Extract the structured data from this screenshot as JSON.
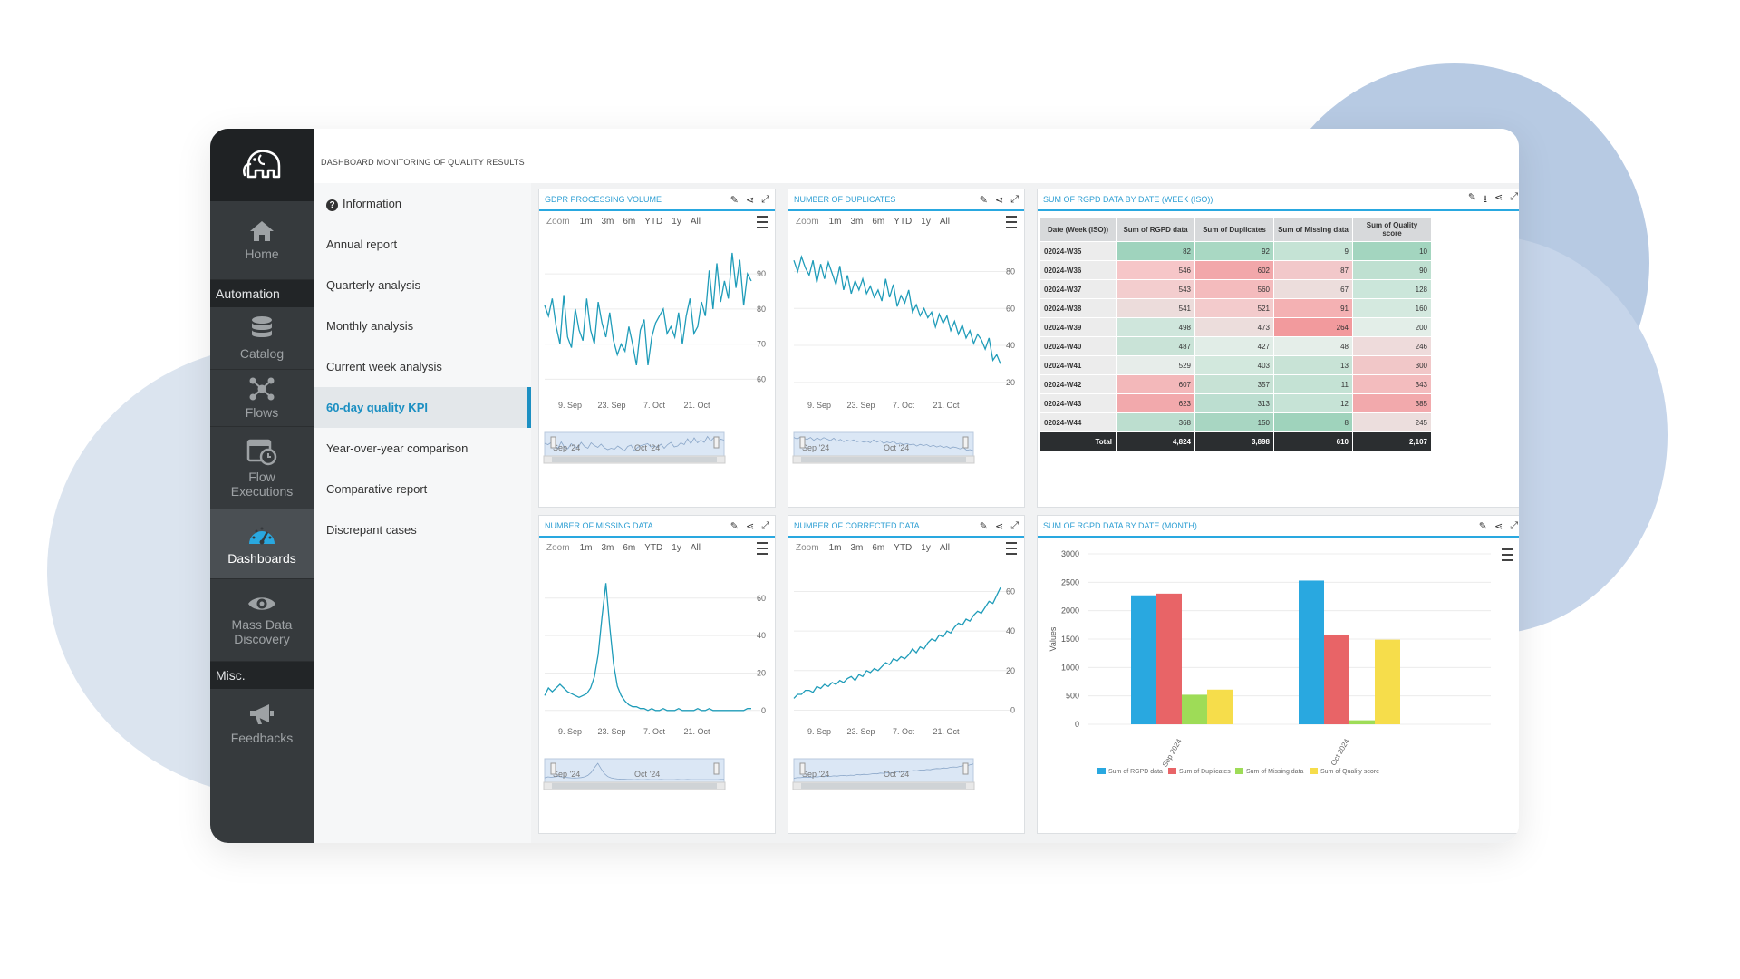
{
  "nav": {
    "home": "Home",
    "section_automation": "Automation",
    "catalog": "Catalog",
    "flows": "Flows",
    "flow_executions_1": "Flow",
    "flow_executions_2": "Executions",
    "dashboards": "Dashboards",
    "mass_1": "Mass Data",
    "mass_2": "Discovery",
    "section_misc": "Misc.",
    "feedbacks": "Feedbacks"
  },
  "page_title": "DASHBOARD MONITORING OF QUALITY RESULTS",
  "menu": [
    "Information",
    "Annual report",
    "Quarterly analysis",
    "Monthly analysis",
    "Current week analysis",
    "60-day quality KPI",
    "Year-over-year comparison",
    "Comparative report",
    "Discrepant cases"
  ],
  "zoom": {
    "label": "Zoom",
    "buttons": [
      "1m",
      "3m",
      "6m",
      "YTD",
      "1y",
      "All"
    ]
  },
  "date_ticks": [
    "9. Sep",
    "23. Sep",
    "7. Oct",
    "21. Oct"
  ],
  "navigator_labels": [
    "Sep '24",
    "Oct '24"
  ],
  "panels": {
    "gdpr": {
      "title": "GDPR PROCESSING VOLUME",
      "y_ticks": [
        "90",
        "80",
        "70",
        "60"
      ]
    },
    "duplicates": {
      "title": "NUMBER OF DUPLICATES",
      "y_ticks": [
        "80",
        "60",
        "40",
        "20"
      ]
    },
    "missing": {
      "title": "NUMBER OF MISSING DATA",
      "y_ticks": [
        "60",
        "40",
        "20",
        "0"
      ]
    },
    "corrected": {
      "title": "NUMBER OF CORRECTED DATA",
      "y_ticks": [
        "60",
        "40",
        "20",
        "0"
      ]
    },
    "pivot": {
      "title": "SUM OF RGPD DATA BY DATE (WEEK (ISO))"
    },
    "month": {
      "title": "SUM OF RGPD DATA BY DATE (MONTH)"
    }
  },
  "pivot": {
    "headers": [
      "Date (Week (ISO))",
      "Sum of RGPD data",
      "Sum of Duplicates",
      "Sum of Missing data",
      "Sum of Quality score"
    ],
    "rows": [
      {
        "label": "02024-W35",
        "values": [
          "82",
          "92",
          "9",
          "10"
        ],
        "colors": [
          "#9fd3bd",
          "#a9d8c3",
          "#c5e3d5",
          "#a3d5bf"
        ]
      },
      {
        "label": "02024-W36",
        "values": [
          "546",
          "602",
          "87",
          "90"
        ],
        "colors": [
          "#f6c6c8",
          "#f2a7aa",
          "#f2c8ca",
          "#bfe0d1"
        ]
      },
      {
        "label": "02024-W37",
        "values": [
          "543",
          "560",
          "67",
          "128"
        ],
        "colors": [
          "#f3cdce",
          "#f4bbbd",
          "#ecdddc",
          "#cbe6da"
        ]
      },
      {
        "label": "02024-W38",
        "values": [
          "541",
          "521",
          "91",
          "160"
        ],
        "colors": [
          "#ecdcdb",
          "#f3cbcc",
          "#f4b1b3",
          "#d4e9df"
        ]
      },
      {
        "label": "02024-W39",
        "values": [
          "498",
          "473",
          "264",
          "200"
        ],
        "colors": [
          "#cfe6dc",
          "#ecdddc",
          "#f29a9d",
          "#e3eee8"
        ]
      },
      {
        "label": "02024-W40",
        "values": [
          "487",
          "427",
          "48",
          "246"
        ],
        "colors": [
          "#c9e3d7",
          "#e1ede7",
          "#e5eee9",
          "#eedbdb"
        ]
      },
      {
        "label": "02024-W41",
        "values": [
          "529",
          "403",
          "13",
          "300"
        ],
        "colors": [
          "#e7edea",
          "#d2e8dd",
          "#c8e3d6",
          "#f1c7c8"
        ]
      },
      {
        "label": "02024-W42",
        "values": [
          "607",
          "357",
          "11",
          "343"
        ],
        "colors": [
          "#f3b8ba",
          "#c7e2d5",
          "#c4e2d4",
          "#f3bcbe"
        ]
      },
      {
        "label": "02024-W43",
        "values": [
          "623",
          "313",
          "12",
          "385"
        ],
        "colors": [
          "#f2a9ac",
          "#bcded0",
          "#c6e3d6",
          "#f2a9ac"
        ]
      },
      {
        "label": "02024-W44",
        "values": [
          "368",
          "150",
          "8",
          "245"
        ],
        "colors": [
          "#bcdecf",
          "#a8d6c2",
          "#9fd3bc",
          "#ecdedd"
        ]
      }
    ],
    "total": {
      "label": "Total",
      "values": [
        "4,824",
        "3,898",
        "610",
        "2,107"
      ]
    }
  },
  "chart_data": [
    {
      "type": "line",
      "title": "GDPR PROCESSING VOLUME",
      "ylim": [
        57,
        97
      ],
      "x_range": [
        "2024-09-01",
        "2024-10-31"
      ],
      "series": [
        {
          "values": [
            81,
            78,
            83,
            75,
            70,
            84,
            72,
            69,
            80,
            74,
            71,
            83,
            74,
            70,
            82,
            76,
            72,
            79,
            71,
            67,
            70,
            68,
            75,
            70,
            64,
            74,
            77,
            64,
            72,
            76,
            78,
            80,
            73,
            75,
            72,
            79,
            70,
            78,
            83,
            73,
            75,
            82,
            78,
            91,
            80,
            93,
            82,
            88,
            83,
            96,
            86,
            94,
            81,
            90,
            88
          ]
        }
      ]
    },
    {
      "type": "line",
      "title": "NUMBER OF DUPLICATES",
      "ylim": [
        16,
        92
      ],
      "x_range": [
        "2024-09-01",
        "2024-10-31"
      ],
      "series": [
        {
          "values": [
            86,
            80,
            88,
            82,
            78,
            86,
            74,
            84,
            76,
            85,
            79,
            73,
            83,
            70,
            78,
            68,
            75,
            70,
            76,
            68,
            72,
            66,
            70,
            64,
            76,
            66,
            73,
            61,
            67,
            63,
            70,
            58,
            62,
            56,
            60,
            55,
            58,
            50,
            57,
            52,
            56,
            48,
            53,
            46,
            51,
            44,
            48,
            41,
            46,
            43,
            38,
            44,
            32,
            35,
            30
          ]
        }
      ]
    },
    {
      "type": "line",
      "title": "NUMBER OF MISSING DATA",
      "ylim": [
        -3,
        72
      ],
      "x_range": [
        "2024-09-01",
        "2024-10-31"
      ],
      "series": [
        {
          "values": [
            8,
            12,
            10,
            12,
            14,
            12,
            10,
            9,
            8,
            7,
            8,
            9,
            12,
            18,
            30,
            50,
            68,
            45,
            25,
            13,
            8,
            5,
            3,
            2,
            2,
            1,
            1,
            0,
            1,
            0,
            0,
            1,
            0,
            0,
            0,
            1,
            0,
            0,
            0,
            0,
            1,
            0,
            0,
            1,
            0,
            0,
            0,
            0,
            0,
            0,
            0,
            0,
            0,
            1,
            1
          ]
        }
      ]
    },
    {
      "type": "line",
      "title": "NUMBER OF CORRECTED DATA",
      "ylim": [
        -3,
        68
      ],
      "x_range": [
        "2024-09-01",
        "2024-10-31"
      ],
      "series": [
        {
          "values": [
            6,
            8,
            8,
            10,
            10,
            9,
            12,
            11,
            13,
            12,
            14,
            13,
            15,
            14,
            16,
            17,
            15,
            18,
            17,
            20,
            19,
            21,
            20,
            22,
            24,
            23,
            26,
            25,
            27,
            26,
            28,
            31,
            29,
            32,
            31,
            34,
            36,
            35,
            38,
            37,
            40,
            39,
            42,
            44,
            43,
            46,
            45,
            48,
            50,
            49,
            52,
            55,
            54,
            58,
            62
          ]
        }
      ]
    },
    {
      "type": "bar",
      "title": "SUM OF RGPD DATA BY DATE (MONTH)",
      "categories": [
        "Sep 2024",
        "Oct 2024"
      ],
      "ylabel": "Values",
      "ylim": [
        0,
        3000
      ],
      "y_ticks": [
        "0",
        "500",
        "1000",
        "1500",
        "2000",
        "2500",
        "3000"
      ],
      "series": [
        {
          "name": "Sum of RGPD data",
          "color": "#29a8e0",
          "values": [
            2270,
            2530
          ]
        },
        {
          "name": "Sum of Duplicates",
          "color": "#e86467",
          "values": [
            2300,
            1580
          ]
        },
        {
          "name": "Sum of Missing data",
          "color": "#9edc57",
          "values": [
            520,
            70
          ]
        },
        {
          "name": "Sum of Quality score",
          "color": "#f6dd4b",
          "values": [
            610,
            1490
          ]
        }
      ],
      "legend": "bottom"
    }
  ]
}
